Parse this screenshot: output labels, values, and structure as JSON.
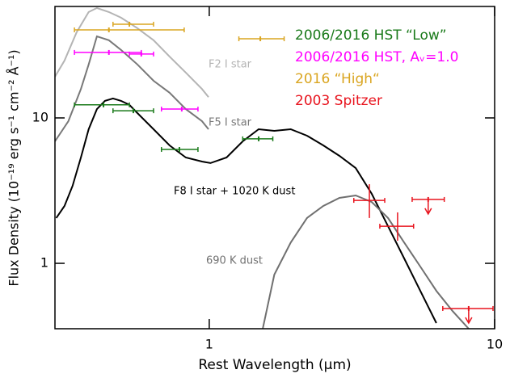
{
  "chart_data": {
    "type": "line",
    "xlabel": "Rest Wavelength (μm)",
    "ylabel": "Flux Density (10⁻¹⁹ erg s⁻¹ cm⁻² Å⁻¹)",
    "xscale": "log",
    "yscale": "log",
    "xlim": [
      0.288,
      10
    ],
    "ylim": [
      0.355,
      58.4
    ],
    "xticks": [
      1,
      10
    ],
    "yticks": [
      1,
      10
    ],
    "legend": "upper right",
    "series": [
      {
        "type": "line",
        "label": "F2 I star",
        "color": "#b4b4b4",
        "x": [
          0.288,
          0.311,
          0.343,
          0.378,
          0.404,
          0.445,
          0.491,
          0.56,
          0.638,
          0.726,
          0.828,
          0.943,
          0.994
        ],
        "values": [
          19.2,
          24.8,
          38.8,
          53.5,
          57.0,
          53.5,
          48.9,
          41.4,
          34.2,
          26.4,
          20.5,
          15.8,
          13.9
        ]
      },
      {
        "type": "line",
        "label": "F5 I star",
        "color": "#787878",
        "x": [
          0.288,
          0.321,
          0.355,
          0.378,
          0.404,
          0.445,
          0.491,
          0.56,
          0.638,
          0.726,
          0.828,
          0.943,
          0.994
        ],
        "values": [
          6.9,
          9.5,
          15.8,
          23.3,
          36.4,
          34.2,
          29.3,
          23.3,
          18.0,
          14.9,
          11.5,
          9.5,
          8.36
        ]
      },
      {
        "type": "line",
        "label": "F8 I star + 1020 K dust",
        "color": "#000000",
        "x": [
          0.291,
          0.311,
          0.332,
          0.355,
          0.378,
          0.404,
          0.431,
          0.46,
          0.491,
          0.525,
          0.56,
          0.638,
          0.726,
          0.828,
          0.943,
          1.01,
          1.15,
          1.31,
          1.49,
          1.69,
          1.93,
          2.2,
          2.51,
          2.86,
          3.26,
          3.71,
          4.23,
          4.82,
          5.49,
          6.25
        ],
        "values": [
          2.05,
          2.48,
          3.41,
          5.34,
          8.36,
          11.5,
          13.1,
          13.6,
          13.1,
          12.3,
          10.8,
          8.36,
          6.47,
          5.34,
          5.01,
          4.89,
          5.34,
          6.9,
          8.36,
          8.15,
          8.36,
          7.55,
          6.47,
          5.48,
          4.52,
          3.01,
          1.8,
          1.08,
          0.647,
          0.388
        ]
      },
      {
        "type": "line",
        "label": "690 K dust",
        "color": "#707070",
        "x": [
          1.54,
          1.69,
          1.93,
          2.2,
          2.51,
          2.86,
          3.26,
          3.71,
          4.23,
          4.82,
          5.49,
          6.25,
          7.12,
          8.11
        ],
        "values": [
          0.355,
          0.836,
          1.39,
          2.05,
          2.48,
          2.82,
          2.93,
          2.64,
          2.05,
          1.39,
          0.95,
          0.647,
          0.47,
          0.355
        ]
      },
      {
        "type": "errorbar",
        "name": "2006/2016 HST “Low”",
        "color": "#1a7a1a",
        "x": [
          0.426,
          0.542,
          0.786,
          1.49
        ],
        "values": [
          12.3,
          11.2,
          6.07,
          7.18
        ],
        "x_low": [
          0.337,
          0.46,
          0.68,
          1.31
        ],
        "x_high": [
          0.525,
          0.638,
          0.913,
          1.67
        ]
      },
      {
        "type": "errorbar",
        "name": "2006/2016 HST, Aᵥ=1.0",
        "color": "#ff00ff",
        "x": [
          0.445,
          0.578,
          0.801
        ],
        "values": [
          28.2,
          27.5,
          11.5
        ],
        "x_low": [
          0.337,
          0.525,
          0.68
        ],
        "x_high": [
          0.578,
          0.638,
          0.913
        ]
      },
      {
        "type": "errorbar",
        "name": "2016 “High“",
        "color": "#daa520",
        "x": [
          0.445,
          0.525,
          1.51
        ],
        "values": [
          40.3,
          44.1,
          35.0
        ],
        "x_low": [
          0.337,
          0.46,
          1.27
        ],
        "x_high": [
          0.817,
          0.638,
          1.83
        ]
      },
      {
        "type": "errorbar",
        "name": "2003 Spitzer",
        "color": "#e8141e",
        "x": [
          3.64,
          4.57,
          5.85,
          8.11
        ],
        "values": [
          2.71,
          1.8,
          2.75,
          0.489
        ],
        "x_low": [
          3.21,
          3.96,
          5.14,
          6.58
        ],
        "x_high": [
          4.12,
          5.2,
          6.66,
          9.87
        ],
        "y_low": [
          2.05,
          1.43,
          null,
          null
        ],
        "y_high": [
          3.5,
          2.24,
          null,
          null
        ],
        "upper_limit": [
          false,
          false,
          true,
          true
        ]
      }
    ]
  }
}
